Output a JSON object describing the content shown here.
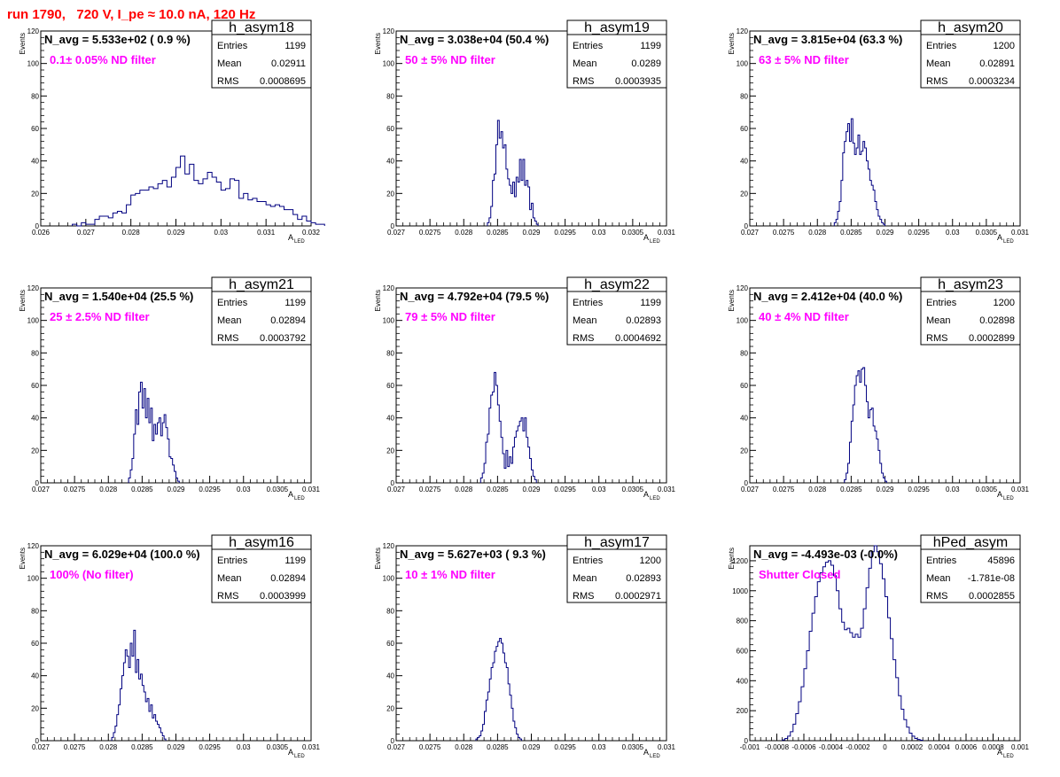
{
  "page": {
    "title": "run 1790,   720 V, I_pe ≈ 10.0 nA, 120 Hz"
  },
  "common": {
    "xlabel": "A",
    "xlabel_sub": "LED",
    "ylabel": "Events",
    "stat_labels": [
      "Entries",
      "Mean",
      "RMS"
    ]
  },
  "colors": {
    "hist": "#000080",
    "annot": "#ff00ff",
    "title": "#ff0000"
  },
  "chart_data": [
    {
      "type": "histogram",
      "name": "h_asym18",
      "navg": "N_avg = 5.533e+02 ( 0.9 %)",
      "annot": "0.1± 0.05% ND filter",
      "entries": "1199",
      "mean": "0.02911",
      "rms": "0.0008695",
      "xlim": [
        0.026,
        0.032
      ],
      "ylim": [
        0,
        120
      ],
      "xticks": [
        0.026,
        0.027,
        0.028,
        0.029,
        0.03,
        0.031,
        0.032
      ],
      "xticklabels": [
        "0.026",
        "0.027",
        "0.028",
        "0.029",
        "0.03",
        "0.031",
        "0.032"
      ],
      "yticks": [
        0,
        20,
        40,
        60,
        80,
        100,
        120
      ],
      "bins": {
        "start": 0.0267,
        "width": 0.0001,
        "counts": [
          1,
          0,
          2,
          1,
          1,
          4,
          6,
          6,
          5,
          8,
          9,
          8,
          13,
          19,
          20,
          22,
          22,
          24,
          23,
          26,
          28,
          24,
          30,
          36,
          43,
          32,
          38,
          28,
          26,
          29,
          33,
          30,
          27,
          22,
          23,
          29,
          28,
          17,
          20,
          16,
          17,
          15,
          15,
          13,
          12,
          13,
          12,
          10,
          10,
          7,
          4,
          6,
          3,
          2,
          1,
          1
        ]
      }
    },
    {
      "type": "histogram",
      "name": "h_asym19",
      "navg": "N_avg = 3.038e+04 (50.4 %)",
      "annot": "50 ± 5% ND filter",
      "entries": "1199",
      "mean": "0.0289",
      "rms": "0.0003935",
      "xlim": [
        0.027,
        0.031
      ],
      "ylim": [
        0,
        120
      ],
      "xticks": [
        0.027,
        0.0275,
        0.028,
        0.0285,
        0.029,
        0.0295,
        0.03,
        0.0305,
        0.031
      ],
      "xticklabels": [
        "0.027",
        "0.0275",
        "0.028",
        "0.0285",
        "0.029",
        "0.0295",
        "0.03",
        "0.0305",
        "0.031"
      ],
      "yticks": [
        0,
        20,
        40,
        60,
        80,
        100,
        120
      ],
      "bins": {
        "start": 0.02835,
        "width": 2.5e-05,
        "counts": [
          2,
          5,
          12,
          28,
          32,
          50,
          65,
          54,
          58,
          48,
          50,
          35,
          29,
          25,
          20,
          27,
          18,
          30,
          27,
          41,
          28,
          41,
          25,
          28,
          24,
          10,
          14,
          5,
          3,
          1
        ]
      }
    },
    {
      "type": "histogram",
      "name": "h_asym20",
      "navg": "N_avg = 3.815e+04 (63.3 %)",
      "annot": "63 ± 5% ND filter",
      "entries": "1200",
      "mean": "0.02891",
      "rms": "0.0003234",
      "xlim": [
        0.027,
        0.031
      ],
      "ylim": [
        0,
        120
      ],
      "xticks": [
        0.027,
        0.0275,
        0.028,
        0.0285,
        0.029,
        0.0295,
        0.03,
        0.0305,
        0.031
      ],
      "xticklabels": [
        "0.027",
        "0.0275",
        "0.028",
        "0.0285",
        "0.029",
        "0.0295",
        "0.03",
        "0.0305",
        "0.031"
      ],
      "yticks": [
        0,
        20,
        40,
        60,
        80,
        100,
        120
      ],
      "bins": {
        "start": 0.02825,
        "width": 2.5e-05,
        "counts": [
          2,
          4,
          9,
          15,
          28,
          45,
          52,
          58,
          63,
          52,
          66,
          51,
          44,
          48,
          56,
          44,
          46,
          52,
          48,
          40,
          35,
          28,
          25,
          22,
          15,
          10,
          6,
          4,
          2,
          1
        ]
      }
    },
    {
      "type": "histogram",
      "name": "h_asym21",
      "navg": "N_avg = 1.540e+04 (25.5 %)",
      "annot": "25 ± 2.5% ND filter",
      "entries": "1199",
      "mean": "0.02894",
      "rms": "0.0003792",
      "xlim": [
        0.027,
        0.031
      ],
      "ylim": [
        0,
        120
      ],
      "xticks": [
        0.027,
        0.0275,
        0.028,
        0.0285,
        0.029,
        0.0295,
        0.03,
        0.0305,
        0.031
      ],
      "xticklabels": [
        "0.027",
        "0.0275",
        "0.028",
        "0.0285",
        "0.029",
        "0.0295",
        "0.03",
        "0.0305",
        "0.031"
      ],
      "yticks": [
        0,
        20,
        40,
        60,
        80,
        100,
        120
      ],
      "bins": {
        "start": 0.0283,
        "width": 2.5e-05,
        "counts": [
          3,
          8,
          15,
          30,
          45,
          36,
          56,
          62,
          46,
          58,
          40,
          52,
          37,
          46,
          26,
          36,
          30,
          37,
          40,
          29,
          37,
          42,
          34,
          27,
          16,
          15,
          11,
          7,
          3,
          1
        ]
      }
    },
    {
      "type": "histogram",
      "name": "h_asym22",
      "navg": "N_avg = 4.792e+04 (79.5 %)",
      "annot": "79 ± 5% ND filter",
      "entries": "1199",
      "mean": "0.02893",
      "rms": "0.0004692",
      "xlim": [
        0.027,
        0.031
      ],
      "ylim": [
        0,
        120
      ],
      "xticks": [
        0.027,
        0.0275,
        0.028,
        0.0285,
        0.029,
        0.0295,
        0.03,
        0.0305,
        0.031
      ],
      "xticklabels": [
        "0.027",
        "0.0275",
        "0.028",
        "0.0285",
        "0.029",
        "0.0295",
        "0.03",
        "0.0305",
        "0.031"
      ],
      "yticks": [
        0,
        20,
        40,
        60,
        80,
        100,
        120
      ],
      "bins": {
        "start": 0.02825,
        "width": 2.5e-05,
        "counts": [
          3,
          6,
          12,
          25,
          30,
          46,
          54,
          56,
          68,
          60,
          48,
          38,
          28,
          18,
          9,
          20,
          10,
          16,
          12,
          22,
          28,
          32,
          35,
          38,
          40,
          32,
          40,
          28,
          22,
          15,
          8,
          4,
          2
        ]
      }
    },
    {
      "type": "histogram",
      "name": "h_asym23",
      "navg": "N_avg = 2.412e+04 (40.0 %)",
      "annot": "40 ± 4% ND filter",
      "entries": "1200",
      "mean": "0.02898",
      "rms": "0.0002899",
      "xlim": [
        0.027,
        0.031
      ],
      "ylim": [
        0,
        120
      ],
      "xticks": [
        0.027,
        0.0275,
        0.028,
        0.0285,
        0.029,
        0.0295,
        0.03,
        0.0305,
        0.031
      ],
      "xticklabels": [
        "0.027",
        "0.0275",
        "0.028",
        "0.0285",
        "0.029",
        "0.0295",
        "0.03",
        "0.0305",
        "0.031"
      ],
      "yticks": [
        0,
        20,
        40,
        60,
        80,
        100,
        120
      ],
      "bins": {
        "start": 0.0284,
        "width": 2.5e-05,
        "counts": [
          2,
          6,
          12,
          25,
          38,
          48,
          60,
          66,
          69,
          62,
          70,
          71,
          60,
          50,
          40,
          45,
          46,
          35,
          32,
          27,
          20,
          12,
          6,
          3,
          1
        ]
      }
    },
    {
      "type": "histogram",
      "name": "h_asym16",
      "navg": "N_avg = 6.029e+04 (100.0 %)",
      "annot": "100% (No filter)",
      "entries": "1199",
      "mean": "0.02894",
      "rms": "0.0003999",
      "xlim": [
        0.027,
        0.031
      ],
      "ylim": [
        0,
        120
      ],
      "xticks": [
        0.027,
        0.0275,
        0.028,
        0.0285,
        0.029,
        0.0295,
        0.03,
        0.0305,
        0.031
      ],
      "xticklabels": [
        "0.027",
        "0.0275",
        "0.028",
        "0.0285",
        "0.029",
        "0.0295",
        "0.03",
        "0.0305",
        "0.031"
      ],
      "yticks": [
        0,
        20,
        40,
        60,
        80,
        100,
        120
      ],
      "bins": {
        "start": 0.02805,
        "width": 2.5e-05,
        "counts": [
          2,
          5,
          9,
          16,
          22,
          32,
          40,
          48,
          56,
          52,
          45,
          60,
          52,
          68,
          42,
          50,
          38,
          41,
          34,
          30,
          24,
          26,
          18,
          22,
          14,
          16,
          12,
          10,
          8,
          5,
          3,
          1
        ]
      }
    },
    {
      "type": "histogram",
      "name": "h_asym17",
      "navg": "N_avg = 5.627e+03 ( 9.3 %)",
      "annot": "10 ± 1% ND filter",
      "entries": "1200",
      "mean": "0.02893",
      "rms": "0.0002971",
      "xlim": [
        0.027,
        0.031
      ],
      "ylim": [
        0,
        120
      ],
      "xticks": [
        0.027,
        0.0275,
        0.028,
        0.0285,
        0.029,
        0.0295,
        0.03,
        0.0305,
        0.031
      ],
      "xticklabels": [
        "0.027",
        "0.0275",
        "0.028",
        "0.0285",
        "0.029",
        "0.0295",
        "0.03",
        "0.0305",
        "0.031"
      ],
      "yticks": [
        0,
        20,
        40,
        60,
        80,
        100,
        120
      ],
      "bins": {
        "start": 0.02818,
        "width": 2.5e-05,
        "counts": [
          1,
          2,
          3,
          6,
          10,
          18,
          25,
          30,
          38,
          45,
          48,
          55,
          58,
          61,
          63,
          60,
          54,
          48,
          45,
          35,
          28,
          20,
          12,
          8,
          4,
          2,
          1
        ]
      }
    },
    {
      "type": "histogram",
      "name": "hPed_asym",
      "navg": "N_avg = -4.493e-03 (-0.0%)",
      "annot": "Shutter Closed",
      "entries": "45896",
      "mean": "-1.781e-08",
      "rms": "0.0002855",
      "xlim": [
        -0.001,
        0.001
      ],
      "ylim": [
        0,
        1300
      ],
      "xticks": [
        -0.001,
        -0.0008,
        -0.0006,
        -0.0004,
        -0.0002,
        0,
        0.0002,
        0.0004,
        0.0006,
        0.0008,
        0.001
      ],
      "xticklabels": [
        "-0.001",
        "-0.0008",
        "-0.0006",
        "-0.0004",
        "-0.0002",
        "0",
        "0.0002",
        "0.0004",
        "0.0006",
        "0.0008",
        "0.001"
      ],
      "yticks": [
        0,
        200,
        400,
        600,
        800,
        1000,
        1200
      ],
      "bins": {
        "start": -0.00076,
        "width": 2e-05,
        "counts": [
          5,
          15,
          30,
          60,
          110,
          180,
          260,
          360,
          480,
          600,
          730,
          850,
          960,
          1060,
          1120,
          1160,
          1190,
          1200,
          1170,
          1100,
          1000,
          880,
          790,
          740,
          750,
          720,
          690,
          710,
          690,
          750,
          880,
          1020,
          1150,
          1260,
          1300,
          1260,
          1180,
          1080,
          960,
          820,
          680,
          540,
          420,
          300,
          210,
          140,
          90,
          50,
          30,
          15,
          8,
          3
        ]
      }
    }
  ]
}
